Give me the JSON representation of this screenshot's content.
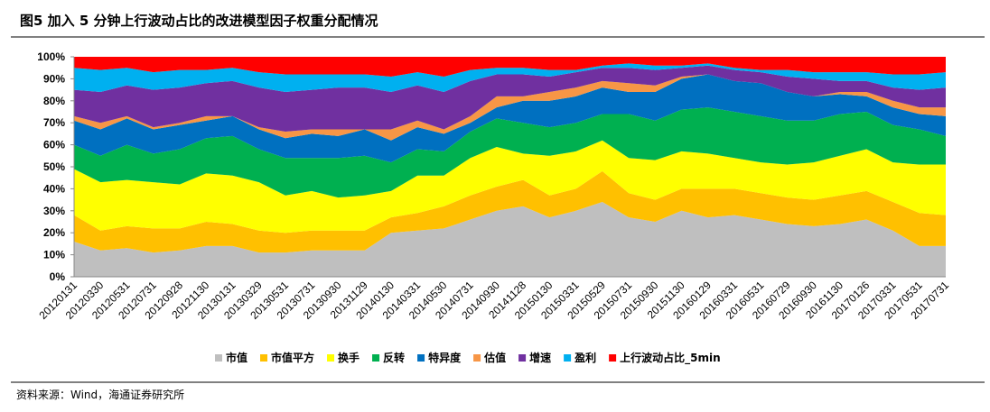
{
  "chart_data": {
    "type": "stacked_area",
    "title": "图5  加入 5 分钟上行波动占比的改进模型因子权重分配情况",
    "source": "资料来源：Wind，海通证券研究所",
    "categories": [
      "20120131",
      "20120330",
      "20120531",
      "20120731",
      "20120928",
      "20121130",
      "20130131",
      "20130329",
      "20130531",
      "20130731",
      "20130930",
      "20131129",
      "20140130",
      "20140331",
      "20140530",
      "20140731",
      "20140930",
      "20141128",
      "20150130",
      "20150331",
      "20150529",
      "20150731",
      "20150930",
      "20151130",
      "20160129",
      "20160331",
      "20160531",
      "20160729",
      "20160930",
      "20161130",
      "20170126",
      "20170331",
      "20170531",
      "20170731"
    ],
    "ylim": [
      0,
      100
    ],
    "yticks": [
      {
        "value": 0,
        "label": "0%"
      },
      {
        "value": 10,
        "label": "10%"
      },
      {
        "value": 20,
        "label": "20%"
      },
      {
        "value": 30,
        "label": "30%"
      },
      {
        "value": 40,
        "label": "40%"
      },
      {
        "value": 50,
        "label": "50%"
      },
      {
        "value": 60,
        "label": "60%"
      },
      {
        "value": 70,
        "label": "70%"
      },
      {
        "value": 80,
        "label": "80%"
      },
      {
        "value": 90,
        "label": "90%"
      },
      {
        "value": 100,
        "label": "100%"
      }
    ],
    "legend": "bottom",
    "series": [
      {
        "name": "市值",
        "color": "#bfbfbf",
        "values": [
          16,
          12,
          13,
          11,
          12,
          14,
          14,
          11,
          11,
          12,
          12,
          12,
          20,
          21,
          22,
          26,
          30,
          32,
          27,
          30,
          34,
          27,
          25,
          30,
          27,
          28,
          26,
          24,
          23,
          24,
          26,
          21,
          14,
          14
        ]
      },
      {
        "name": "市值平方",
        "color": "#ffc000",
        "values": [
          12,
          9,
          10,
          11,
          10,
          11,
          10,
          10,
          9,
          9,
          9,
          9,
          7,
          8,
          10,
          11,
          11,
          12,
          10,
          10,
          14,
          11,
          10,
          10,
          13,
          12,
          12,
          12,
          12,
          13,
          13,
          13,
          15,
          14
        ]
      },
      {
        "name": "换手",
        "color": "#ffff00",
        "values": [
          21,
          22,
          21,
          21,
          20,
          22,
          22,
          22,
          17,
          18,
          15,
          16,
          12,
          17,
          14,
          17,
          18,
          12,
          18,
          17,
          14,
          16,
          18,
          17,
          16,
          14,
          14,
          15,
          17,
          18,
          19,
          18,
          22,
          23
        ]
      },
      {
        "name": "反转",
        "color": "#00b050",
        "values": [
          11,
          12,
          16,
          13,
          16,
          16,
          18,
          15,
          17,
          15,
          18,
          18,
          13,
          12,
          11,
          12,
          13,
          14,
          13,
          13,
          12,
          20,
          18,
          19,
          21,
          21,
          21,
          20,
          19,
          19,
          17,
          17,
          16,
          13
        ]
      },
      {
        "name": "特异度",
        "color": "#0070c0",
        "values": [
          11,
          12,
          12,
          11,
          11,
          8,
          9,
          9,
          9,
          11,
          10,
          12,
          10,
          10,
          8,
          4,
          5,
          10,
          12,
          12,
          12,
          10,
          13,
          14,
          15,
          14,
          15,
          13,
          11,
          9,
          7,
          8,
          7,
          9
        ]
      },
      {
        "name": "估值",
        "color": "#f79646",
        "values": [
          2,
          3,
          1,
          1,
          1,
          2,
          0,
          1,
          3,
          2,
          3,
          0,
          5,
          3,
          2,
          3,
          5,
          2,
          4,
          4,
          3,
          4,
          3,
          1,
          0,
          0,
          0,
          0,
          0,
          1,
          2,
          3,
          3,
          4
        ]
      },
      {
        "name": "增速",
        "color": "#7030a0",
        "values": [
          12,
          14,
          14,
          17,
          16,
          15,
          16,
          18,
          18,
          18,
          19,
          19,
          17,
          16,
          17,
          16,
          10,
          10,
          7,
          7,
          6,
          7,
          7,
          4,
          4,
          5,
          5,
          7,
          8,
          5,
          5,
          6,
          8,
          9
        ]
      },
      {
        "name": "盈利",
        "color": "#00b0f0",
        "values": [
          10,
          10,
          8,
          8,
          8,
          6,
          6,
          7,
          8,
          7,
          6,
          6,
          7,
          6,
          7,
          5,
          3,
          3,
          3,
          1,
          1,
          2,
          2,
          1,
          1,
          1,
          1,
          3,
          3,
          4,
          4,
          6,
          7,
          7
        ]
      },
      {
        "name": "上行波动占比_5min",
        "color": "#ff0000",
        "values": [
          5,
          6,
          5,
          7,
          6,
          6,
          5,
          7,
          8,
          8,
          8,
          8,
          9,
          7,
          9,
          6,
          5,
          5,
          6,
          6,
          4,
          3,
          4,
          4,
          3,
          5,
          6,
          6,
          7,
          7,
          7,
          8,
          8,
          7
        ]
      }
    ]
  }
}
